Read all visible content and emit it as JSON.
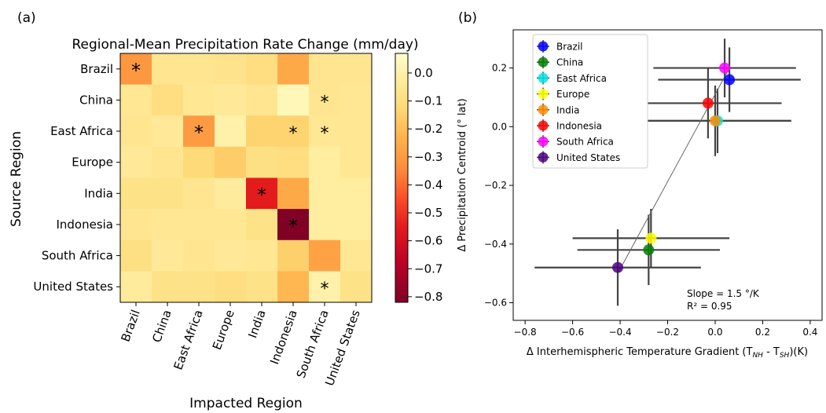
{
  "chart_data": [
    {
      "type": "heatmap",
      "panel_label": "(a)",
      "title": "Regional-Mean Precipitation Rate Change (mm/day)",
      "xlabel": "Impacted Region",
      "ylabel": "Source Region",
      "x_categories": [
        "Brazil",
        "China",
        "East Africa",
        "Europe",
        "India",
        "Indonesia",
        "South Africa",
        "United States"
      ],
      "y_categories": [
        "Brazil",
        "China",
        "East Africa",
        "Europe",
        "India",
        "Indonesia",
        "South Africa",
        "United States"
      ],
      "values": [
        [
          -0.31,
          -0.06,
          -0.06,
          -0.07,
          -0.1,
          -0.26,
          -0.06,
          -0.06
        ],
        [
          -0.05,
          -0.1,
          -0.05,
          -0.04,
          -0.06,
          0.03,
          -0.06,
          -0.05
        ],
        [
          -0.06,
          -0.04,
          -0.3,
          0.0,
          -0.14,
          -0.14,
          -0.05,
          -0.05
        ],
        [
          -0.04,
          -0.06,
          -0.12,
          -0.16,
          -0.09,
          -0.1,
          -0.02,
          -0.05
        ],
        [
          -0.08,
          -0.08,
          -0.06,
          -0.03,
          -0.55,
          -0.26,
          -0.02,
          -0.02
        ],
        [
          -0.06,
          -0.05,
          -0.05,
          -0.05,
          -0.08,
          -0.82,
          -0.02,
          -0.02
        ],
        [
          -0.09,
          -0.04,
          -0.06,
          -0.04,
          -0.05,
          -0.15,
          -0.28,
          -0.05
        ],
        [
          -0.03,
          -0.08,
          -0.08,
          -0.1,
          -0.08,
          -0.22,
          0.0,
          -0.08
        ]
      ],
      "significance": [
        [
          "black",
          "",
          "",
          "",
          "",
          "",
          "",
          ""
        ],
        [
          "",
          "",
          "",
          "",
          "",
          "",
          "gray",
          ""
        ],
        [
          "",
          "",
          "black",
          "",
          "",
          "gray",
          "gray",
          ""
        ],
        [
          "",
          "",
          "",
          "",
          "",
          "",
          "",
          ""
        ],
        [
          "",
          "",
          "",
          "",
          "black",
          "",
          "",
          ""
        ],
        [
          "",
          "",
          "",
          "",
          "",
          "black",
          "",
          ""
        ],
        [
          "",
          "",
          "",
          "",
          "",
          "",
          "",
          ""
        ],
        [
          "",
          "",
          "",
          "",
          "",
          "",
          "gray",
          ""
        ]
      ],
      "marker_symbol": "*",
      "colormap": "YlOrRd_r",
      "color_range": [
        -0.82,
        0.07
      ],
      "colorbar_ticks": [
        "0.0",
        "−0.1",
        "−0.2",
        "−0.3",
        "−0.4",
        "−0.5",
        "−0.6",
        "−0.7",
        "−0.8"
      ],
      "colorbar_tick_values": [
        0.0,
        -0.1,
        -0.2,
        -0.3,
        -0.4,
        -0.5,
        -0.6,
        -0.7,
        -0.8
      ]
    },
    {
      "type": "scatter",
      "panel_label": "(b)",
      "xlabel": "Δ Interhemispheric Temperature Gradient (T",
      "xlabel_sub1": "NH",
      "xlabel_mid": " - T",
      "xlabel_sub2": "SH",
      "xlabel_end": ")(K)",
      "ylabel": "Δ Precipitation Centroid (° lat)",
      "xlim": [
        -0.85,
        0.45
      ],
      "ylim": [
        -0.66,
        0.33
      ],
      "x_ticks": [
        "−0.8",
        "−0.6",
        "−0.4",
        "−0.2",
        "0.0",
        "0.2",
        "0.4"
      ],
      "x_tick_values": [
        -0.8,
        -0.6,
        -0.4,
        -0.2,
        0.0,
        0.2,
        0.4
      ],
      "y_ticks": [
        "0.2",
        "0.0",
        "−0.2",
        "−0.4",
        "−0.6"
      ],
      "y_tick_values": [
        0.2,
        0.0,
        -0.2,
        -0.4,
        -0.6
      ],
      "series": [
        {
          "name": "Brazil",
          "color": "#0000ff",
          "x": 0.06,
          "y": 0.16,
          "xerr": 0.3,
          "yerr": 0.11
        },
        {
          "name": "China",
          "color": "#008000",
          "x": -0.28,
          "y": -0.42,
          "xerr": 0.3,
          "yerr": 0.12
        },
        {
          "name": "East Africa",
          "color": "#00e5e5",
          "x": 0.01,
          "y": 0.02,
          "xerr": 0.31,
          "yerr": 0.11
        },
        {
          "name": "Europe",
          "color": "#ffff00",
          "x": -0.27,
          "y": -0.38,
          "xerr": 0.33,
          "yerr": 0.1
        },
        {
          "name": "India",
          "color": "#ff8c00",
          "x": 0.0,
          "y": 0.02,
          "xerr": 0.32,
          "yerr": 0.12
        },
        {
          "name": "Indonesia",
          "color": "#ff0000",
          "x": -0.03,
          "y": 0.08,
          "xerr": 0.31,
          "yerr": 0.12
        },
        {
          "name": "South Africa",
          "color": "#ff00ff",
          "x": 0.04,
          "y": 0.2,
          "xerr": 0.3,
          "yerr": 0.1
        },
        {
          "name": "United States",
          "color": "#4b0082",
          "x": -0.41,
          "y": -0.48,
          "xerr": 0.35,
          "yerr": 0.13
        }
      ],
      "fit_line": {
        "x": [
          -0.41,
          0.06
        ],
        "y": [
          -0.5,
          0.2
        ]
      },
      "annotation_slope": "Slope = 1.5 °/K",
      "annotation_r2": "R² = 0.95",
      "legend_position": "top-left",
      "grid": false
    }
  ]
}
